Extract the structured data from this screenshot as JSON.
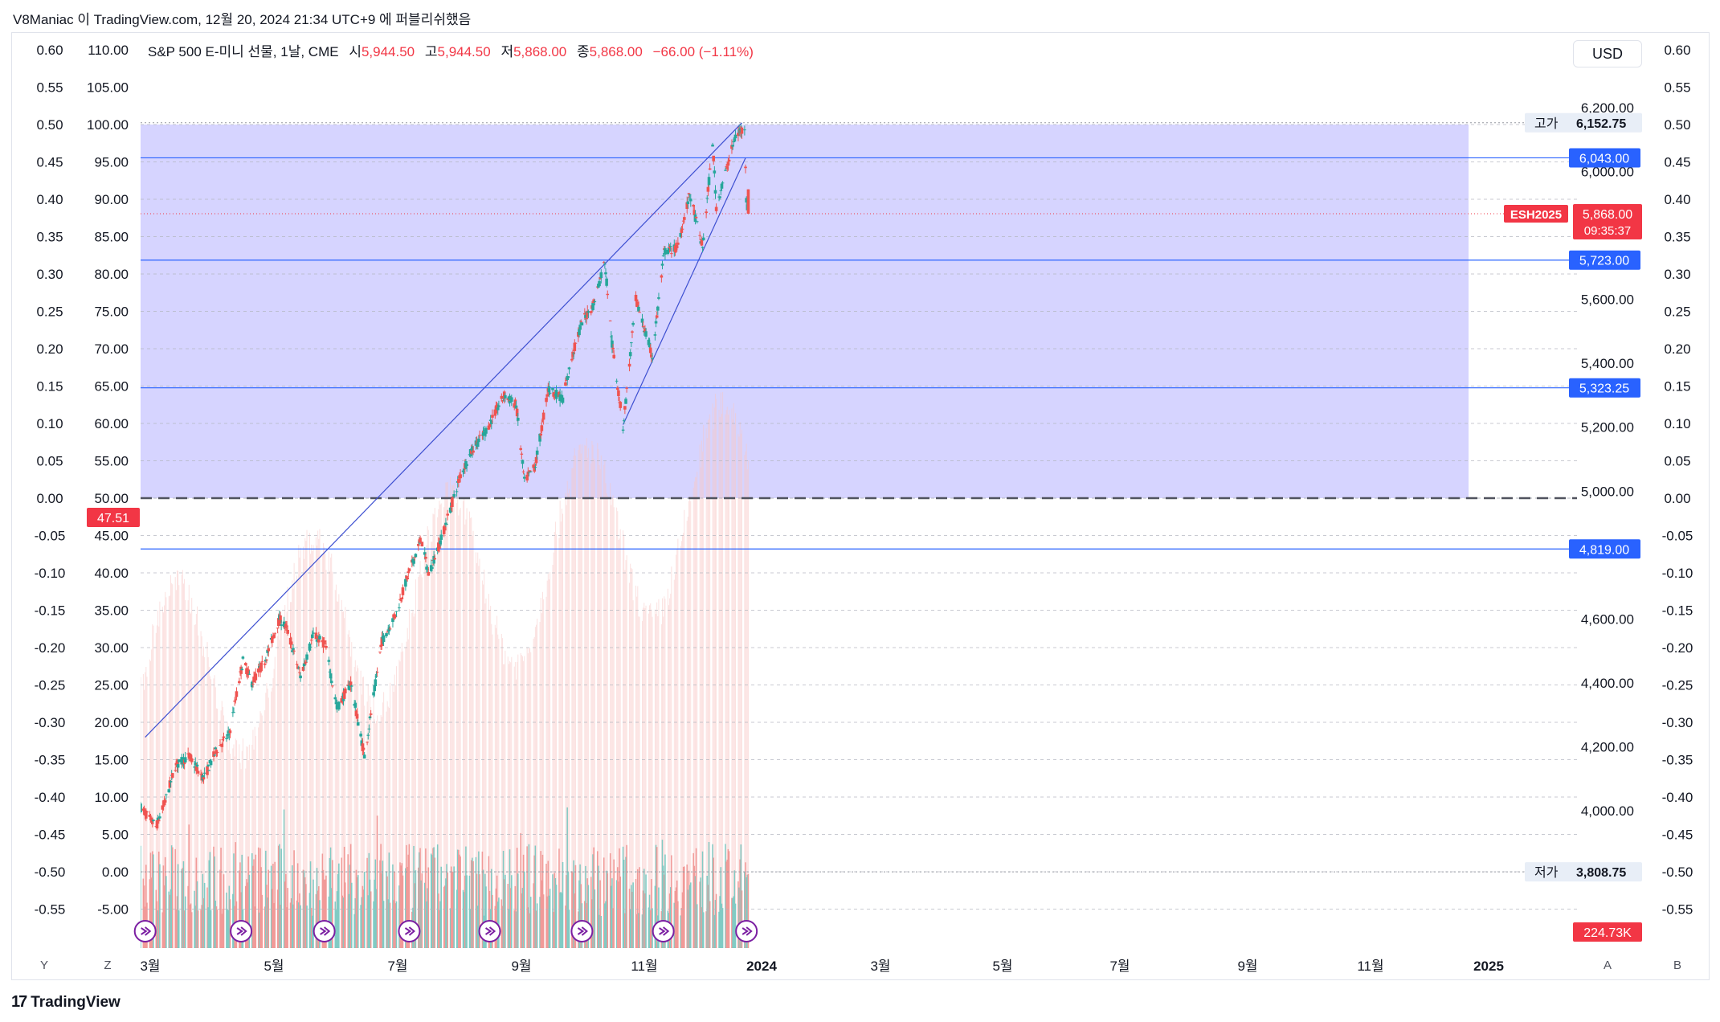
{
  "header": {
    "caption": "V8Maniac 이 TradingView.com, 12월 20, 2024 21:34 UTC+9 에 퍼블리쉬했음"
  },
  "legend": {
    "symbol_text": "S&P 500 E-미니 선물, 1날, CME",
    "open_label": "시",
    "open_value": "5,944.50",
    "high_label": "고",
    "high_value": "5,944.50",
    "low_label": "저",
    "low_value": "5,868.00",
    "close_label": "종",
    "close_value": "5,868.00",
    "change": "−66.00 (−1.11%)"
  },
  "currency_button": "USD",
  "bottom_buttons": {
    "y": "Y",
    "z": "Z",
    "a": "A",
    "b": "B"
  },
  "brand": {
    "name": "TradingView",
    "mark": "17"
  },
  "colors": {
    "up": "#26a69a",
    "down": "#ef5350",
    "band": "#d6d4ff",
    "level_line": "#2962ff",
    "trendline": "#3d4fd1",
    "price_badge": "#f23645",
    "level_badge": "#2962ff"
  },
  "chart_data": {
    "type": "candlestick",
    "ylim": [
      3700,
      6280
    ],
    "x_ticks": [
      "3월",
      "5월",
      "7월",
      "9월",
      "11월",
      "2024",
      "3월",
      "5월",
      "7월",
      "9월",
      "11월",
      "2025"
    ],
    "price_ticks": [
      "6,200.00",
      "6,000.00",
      "5,600.00",
      "5,400.00",
      "5,200.00",
      "5,000.00",
      "4,600.00",
      "4,400.00",
      "4,200.00",
      "4,000.00"
    ],
    "price_tick_values": [
      6200,
      6000,
      5600,
      5400,
      5200,
      5000,
      4600,
      4400,
      4200,
      4000
    ],
    "oscillator_ticks": [
      "0.60",
      "0.55",
      "0.50",
      "0.45",
      "0.40",
      "0.35",
      "0.30",
      "0.25",
      "0.20",
      "0.15",
      "0.10",
      "0.05",
      "0.00",
      "-0.05",
      "-0.10",
      "-0.15",
      "-0.20",
      "-0.25",
      "-0.30",
      "-0.35",
      "-0.40",
      "-0.45",
      "-0.50",
      "-0.55"
    ],
    "rsi_ticks": [
      "110.00",
      "105.00",
      "100.00",
      "95.00",
      "90.00",
      "85.00",
      "80.00",
      "75.00",
      "70.00",
      "65.00",
      "60.00",
      "55.00",
      "50.00",
      "45.00",
      "40.00",
      "35.00",
      "30.00",
      "25.00",
      "20.00",
      "15.00",
      "10.00",
      "5.00",
      "0.00",
      "-5.00"
    ],
    "rsi_current": "47.51",
    "horizontal_levels": [
      {
        "value": 6043.0,
        "label": "6,043.00"
      },
      {
        "value": 5723.0,
        "label": "5,723.00"
      },
      {
        "value": 5323.25,
        "label": "5,323.25"
      },
      {
        "value": 4819.0,
        "label": "4,819.00"
      }
    ],
    "high": {
      "label": "고가",
      "value": 6152.75,
      "text": "6,152.75"
    },
    "low": {
      "label": "저가",
      "value": 3808.75,
      "text": "3,808.75"
    },
    "last": {
      "symbol": "ESH2025",
      "value": 5868.0,
      "text": "5,868.00",
      "countdown": "09:35:37"
    },
    "volume_last": "224.73K",
    "price_path": [
      [
        "2023-02-24",
        4010
      ],
      [
        "2023-03-13",
        3950
      ],
      [
        "2023-03-22",
        4020
      ],
      [
        "2023-04-03",
        4140
      ],
      [
        "2023-04-18",
        4170
      ],
      [
        "2023-05-04",
        4100
      ],
      [
        "2023-05-18",
        4190
      ],
      [
        "2023-06-01",
        4240
      ],
      [
        "2023-06-16",
        4470
      ],
      [
        "2023-06-26",
        4400
      ],
      [
        "2023-07-10",
        4470
      ],
      [
        "2023-07-26",
        4600
      ],
      [
        "2023-08-03",
        4570
      ],
      [
        "2023-08-18",
        4420
      ],
      [
        "2023-09-01",
        4550
      ],
      [
        "2023-09-14",
        4520
      ],
      [
        "2023-09-27",
        4320
      ],
      [
        "2023-10-12",
        4400
      ],
      [
        "2023-10-27",
        4170
      ],
      [
        "2023-11-15",
        4530
      ],
      [
        "2023-12-01",
        4620
      ],
      [
        "2023-12-14",
        4740
      ],
      [
        "2023-12-28",
        4850
      ],
      [
        "2024-01-05",
        4740
      ],
      [
        "2024-01-19",
        4850
      ],
      [
        "2024-02-09",
        5050
      ],
      [
        "2024-02-22",
        5130
      ],
      [
        "2024-03-08",
        5190
      ],
      [
        "2024-03-28",
        5300
      ],
      [
        "2024-04-10",
        5270
      ],
      [
        "2024-04-19",
        5030
      ],
      [
        "2024-05-01",
        5080
      ],
      [
        "2024-05-15",
        5320
      ],
      [
        "2024-05-31",
        5290
      ],
      [
        "2024-06-12",
        5440
      ],
      [
        "2024-06-21",
        5530
      ],
      [
        "2024-07-03",
        5580
      ],
      [
        "2024-07-16",
        5720
      ],
      [
        "2024-07-24",
        5460
      ],
      [
        "2024-08-05",
        5200
      ],
      [
        "2024-08-19",
        5600
      ],
      [
        "2024-09-06",
        5420
      ],
      [
        "2024-09-19",
        5750
      ],
      [
        "2024-10-03",
        5760
      ],
      [
        "2024-10-17",
        5930
      ],
      [
        "2024-10-31",
        5760
      ],
      [
        "2024-11-11",
        6090
      ],
      [
        "2024-11-15",
        5890
      ],
      [
        "2024-12-02",
        6070
      ],
      [
        "2024-12-06",
        6110
      ],
      [
        "2024-12-16",
        6140
      ],
      [
        "2024-12-18",
        5910
      ],
      [
        "2024-12-20",
        5868
      ]
    ],
    "trendlines": [
      {
        "from": [
          "2023-03-01",
          4230
        ],
        "to": [
          "2024-12-13",
          6152.75
        ]
      },
      {
        "from": [
          "2024-08-05",
          5208
        ],
        "to": [
          "2024-12-17",
          6043
        ]
      }
    ],
    "markers": [
      "2023-03-01",
      "2023-06-14",
      "2023-09-13",
      "2023-12-15",
      "2024-03-12",
      "2024-06-21",
      "2024-09-18",
      "2024-12-18"
    ]
  }
}
